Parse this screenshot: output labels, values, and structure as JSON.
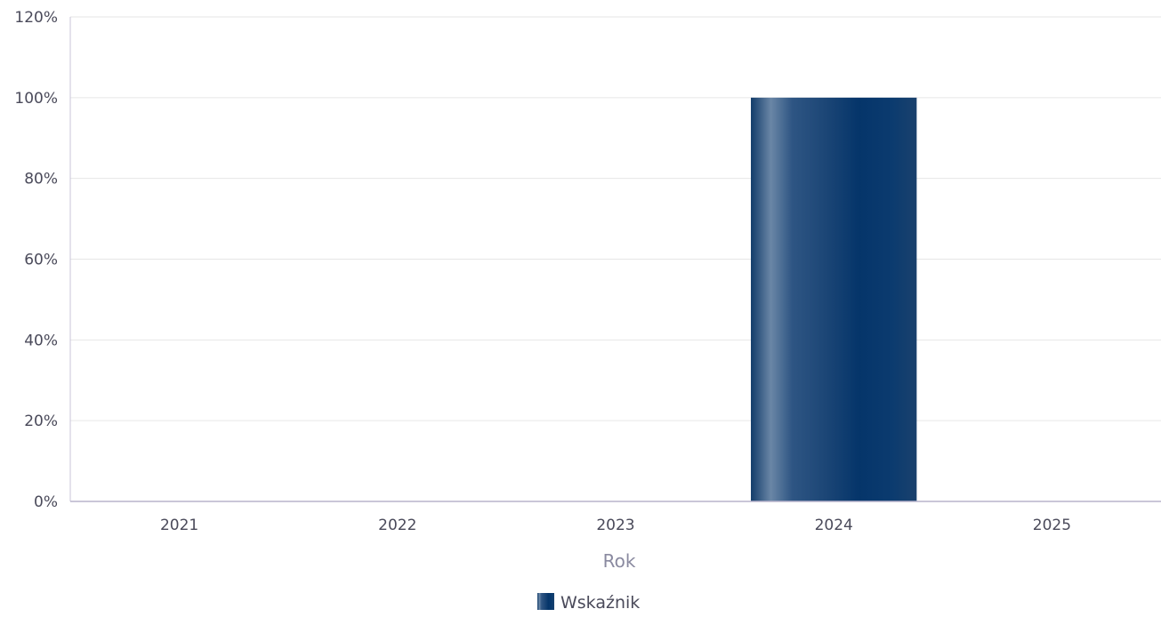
{
  "chart_data": {
    "type": "bar",
    "categories": [
      "2021",
      "2022",
      "2023",
      "2024",
      "2025"
    ],
    "series": [
      {
        "name": "Wskaźnik",
        "values": [
          0,
          0,
          0,
          100,
          0
        ],
        "color": "#0a3566"
      }
    ],
    "xlabel": "Rok",
    "ylabel": "",
    "ylim": [
      0,
      120
    ],
    "yticks": [
      "0%",
      "20%",
      "40%",
      "60%",
      "80%",
      "100%",
      "120%"
    ],
    "grid": true,
    "legend_position": "bottom-center"
  }
}
